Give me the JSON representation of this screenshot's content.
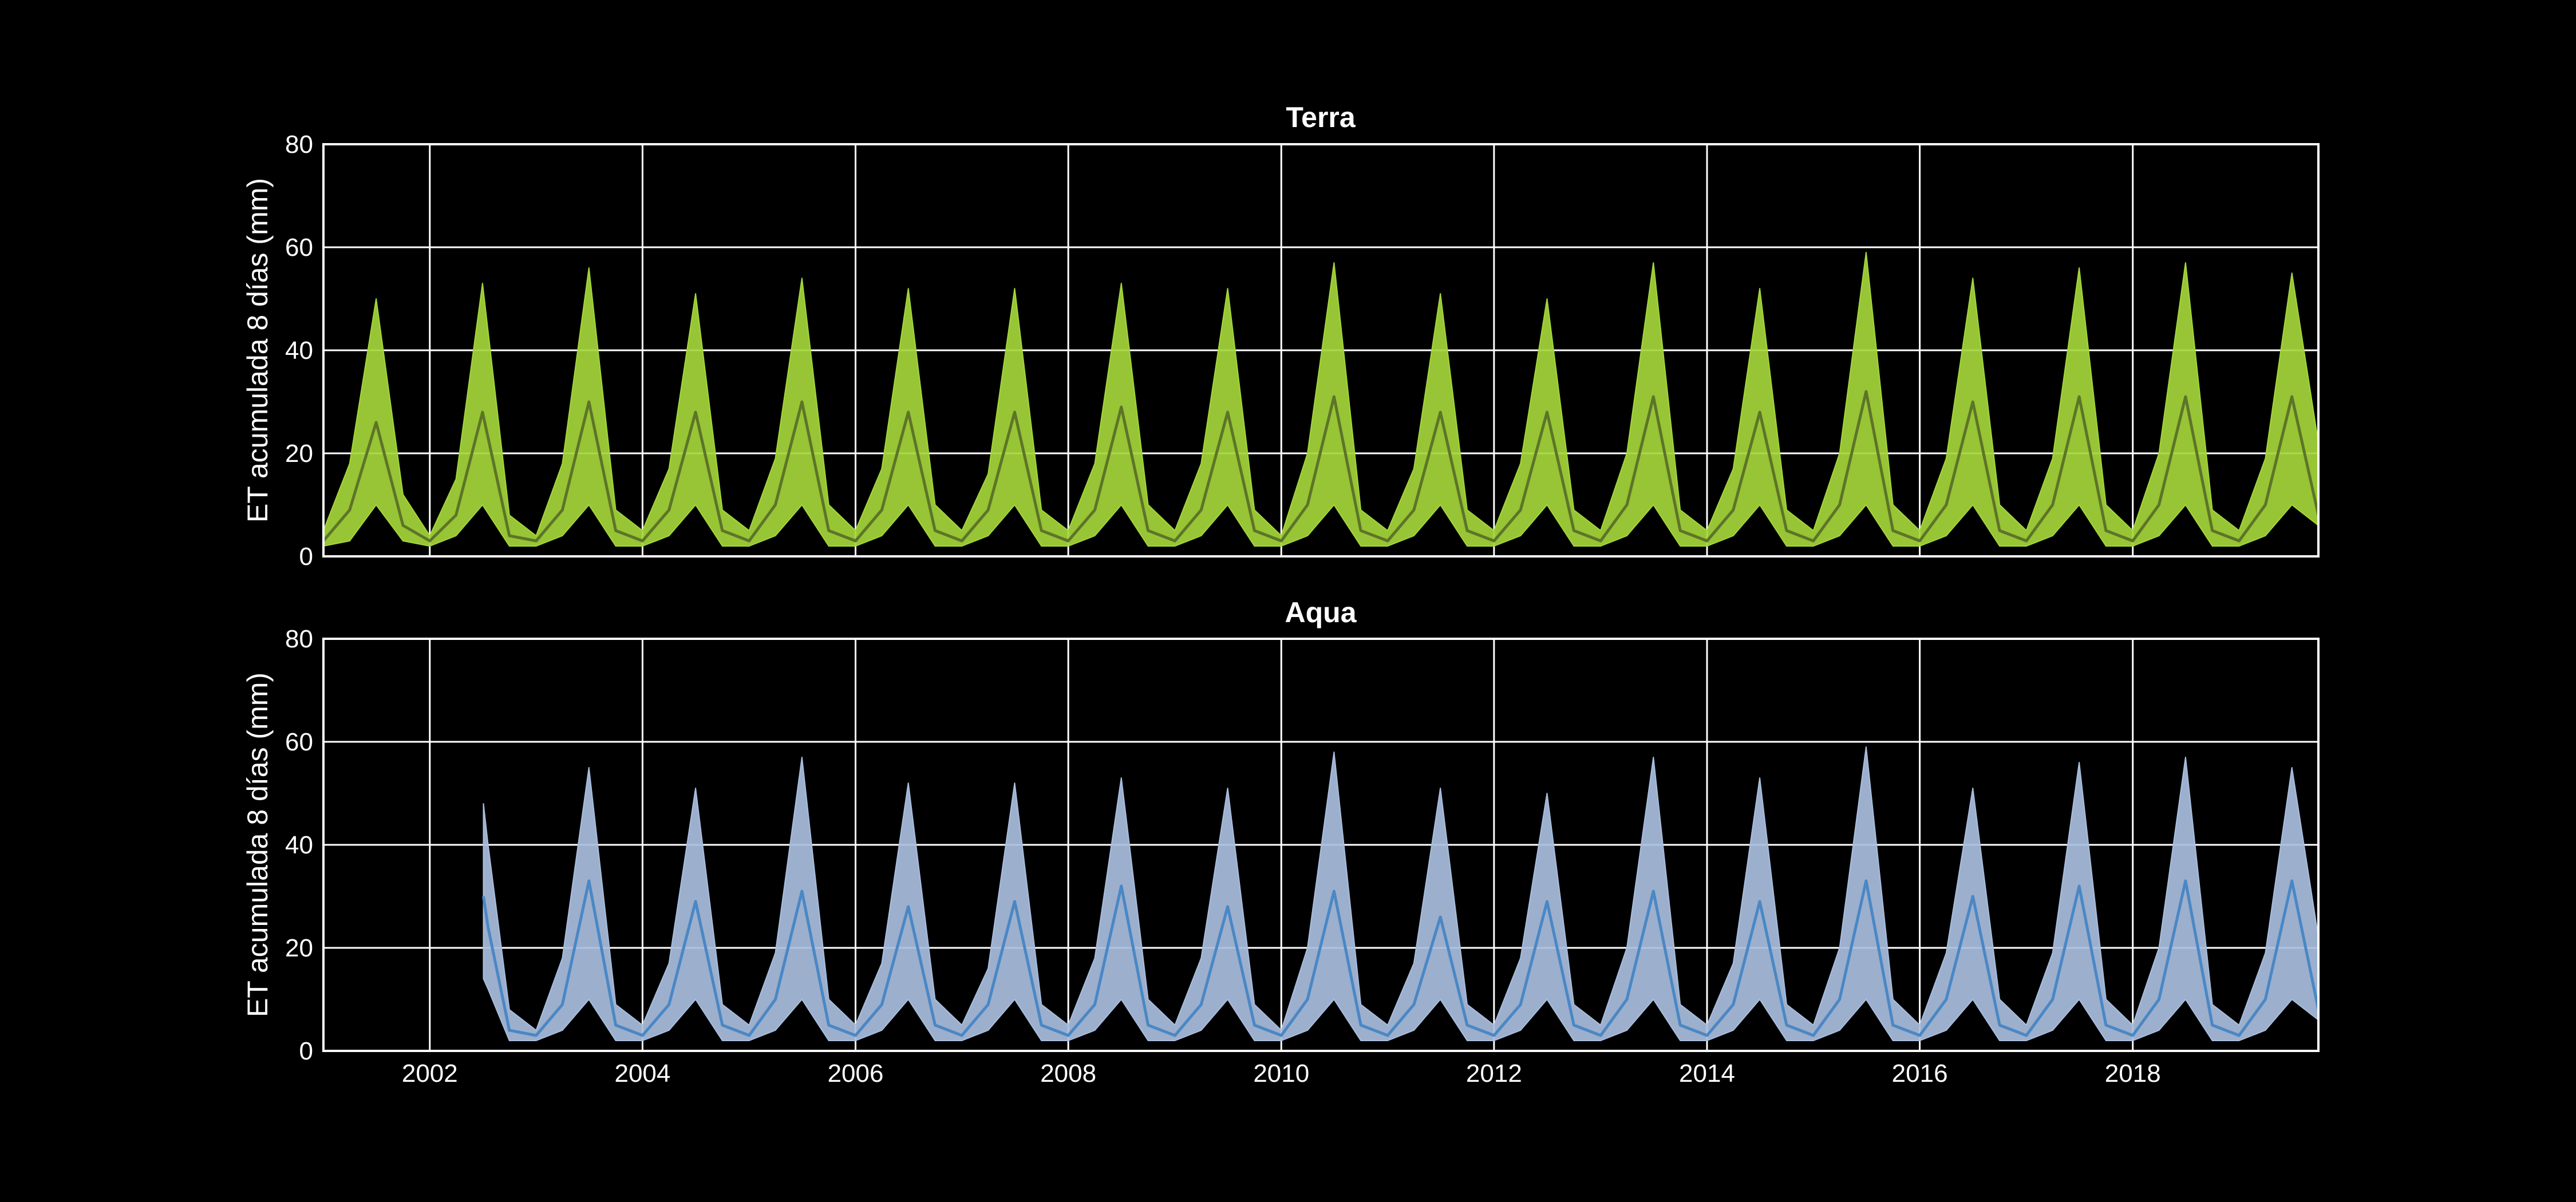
{
  "chart_data": [
    {
      "type": "area",
      "title": "Terra",
      "ylabel": "ET acumulada 8 días (mm)",
      "xlabel": "",
      "xlim": [
        "2001-01-01",
        "2019-09-30"
      ],
      "ylim": [
        0,
        80
      ],
      "yticks": [
        0,
        20,
        40,
        60,
        80
      ],
      "xticks": [
        "2002",
        "2004",
        "2006",
        "2008",
        "2010",
        "2012",
        "2014",
        "2016",
        "2018"
      ],
      "grid": true,
      "series": [
        {
          "kind": "envelope",
          "color": "#a4d63a",
          "x": [
            "2001-01-01",
            "2001-04-01",
            "2001-07-01",
            "2001-10-01",
            "2002-01-01",
            "2002-04-01",
            "2002-07-01",
            "2002-10-01",
            "2003-01-01",
            "2003-04-01",
            "2003-07-01",
            "2003-10-01",
            "2004-01-01",
            "2004-04-01",
            "2004-07-01",
            "2004-10-01",
            "2005-01-01",
            "2005-04-01",
            "2005-07-01",
            "2005-10-01",
            "2006-01-01",
            "2006-04-01",
            "2006-07-01",
            "2006-10-01",
            "2007-01-01",
            "2007-04-01",
            "2007-07-01",
            "2007-10-01",
            "2008-01-01",
            "2008-04-01",
            "2008-07-01",
            "2008-10-01",
            "2009-01-01",
            "2009-04-01",
            "2009-07-01",
            "2009-10-01",
            "2010-01-01",
            "2010-04-01",
            "2010-07-01",
            "2010-10-01",
            "2011-01-01",
            "2011-04-01",
            "2011-07-01",
            "2011-10-01",
            "2012-01-01",
            "2012-04-01",
            "2012-07-01",
            "2012-10-01",
            "2013-01-01",
            "2013-04-01",
            "2013-07-01",
            "2013-10-01",
            "2014-01-01",
            "2014-04-01",
            "2014-07-01",
            "2014-10-01",
            "2015-01-01",
            "2015-04-01",
            "2015-07-01",
            "2015-10-01",
            "2016-01-01",
            "2016-04-01",
            "2016-07-01",
            "2016-10-01",
            "2017-01-01",
            "2017-04-01",
            "2017-07-01",
            "2017-10-01",
            "2018-01-01",
            "2018-04-01",
            "2018-07-01",
            "2018-10-01",
            "2019-01-01",
            "2019-04-01",
            "2019-07-01",
            "2019-09-30"
          ],
          "low": [
            2,
            3,
            10,
            3,
            2,
            4,
            10,
            2,
            2,
            4,
            10,
            2,
            2,
            4,
            10,
            2,
            2,
            4,
            10,
            2,
            2,
            4,
            10,
            2,
            2,
            4,
            10,
            2,
            2,
            4,
            10,
            2,
            2,
            4,
            10,
            2,
            2,
            4,
            10,
            2,
            2,
            4,
            10,
            2,
            2,
            4,
            10,
            2,
            2,
            4,
            10,
            2,
            2,
            4,
            10,
            2,
            2,
            4,
            10,
            2,
            2,
            4,
            10,
            2,
            2,
            4,
            10,
            2,
            2,
            4,
            10,
            2,
            2,
            4,
            10,
            6
          ],
          "high": [
            5,
            18,
            50,
            12,
            4,
            15,
            53,
            8,
            4,
            18,
            56,
            9,
            5,
            17,
            51,
            9,
            5,
            19,
            54,
            10,
            5,
            17,
            52,
            10,
            5,
            16,
            52,
            9,
            5,
            18,
            53,
            10,
            5,
            18,
            52,
            9,
            4,
            20,
            57,
            9,
            5,
            17,
            51,
            9,
            5,
            18,
            50,
            9,
            5,
            20,
            57,
            9,
            5,
            17,
            52,
            9,
            5,
            20,
            59,
            10,
            5,
            19,
            54,
            10,
            5,
            19,
            56,
            10,
            5,
            20,
            57,
            9,
            5,
            19,
            55,
            22
          ]
        },
        {
          "kind": "line",
          "color": "#5d7428",
          "x": [
            "2001-01-01",
            "2001-04-01",
            "2001-07-01",
            "2001-10-01",
            "2002-01-01",
            "2002-04-01",
            "2002-07-01",
            "2002-10-01",
            "2003-01-01",
            "2003-04-01",
            "2003-07-01",
            "2003-10-01",
            "2004-01-01",
            "2004-04-01",
            "2004-07-01",
            "2004-10-01",
            "2005-01-01",
            "2005-04-01",
            "2005-07-01",
            "2005-10-01",
            "2006-01-01",
            "2006-04-01",
            "2006-07-01",
            "2006-10-01",
            "2007-01-01",
            "2007-04-01",
            "2007-07-01",
            "2007-10-01",
            "2008-01-01",
            "2008-04-01",
            "2008-07-01",
            "2008-10-01",
            "2009-01-01",
            "2009-04-01",
            "2009-07-01",
            "2009-10-01",
            "2010-01-01",
            "2010-04-01",
            "2010-07-01",
            "2010-10-01",
            "2011-01-01",
            "2011-04-01",
            "2011-07-01",
            "2011-10-01",
            "2012-01-01",
            "2012-04-01",
            "2012-07-01",
            "2012-10-01",
            "2013-01-01",
            "2013-04-01",
            "2013-07-01",
            "2013-10-01",
            "2014-01-01",
            "2014-04-01",
            "2014-07-01",
            "2014-10-01",
            "2015-01-01",
            "2015-04-01",
            "2015-07-01",
            "2015-10-01",
            "2016-01-01",
            "2016-04-01",
            "2016-07-01",
            "2016-10-01",
            "2017-01-01",
            "2017-04-01",
            "2017-07-01",
            "2017-10-01",
            "2018-01-01",
            "2018-04-01",
            "2018-07-01",
            "2018-10-01",
            "2019-01-01",
            "2019-04-01",
            "2019-07-01",
            "2019-09-30"
          ],
          "values": [
            3,
            9,
            26,
            6,
            3,
            8,
            28,
            4,
            3,
            9,
            30,
            5,
            3,
            9,
            28,
            5,
            3,
            10,
            30,
            5,
            3,
            9,
            28,
            5,
            3,
            9,
            28,
            5,
            3,
            9,
            29,
            5,
            3,
            9,
            28,
            5,
            3,
            10,
            31,
            5,
            3,
            9,
            28,
            5,
            3,
            9,
            28,
            5,
            3,
            10,
            31,
            5,
            3,
            9,
            28,
            5,
            3,
            10,
            32,
            5,
            3,
            10,
            30,
            5,
            3,
            10,
            31,
            5,
            3,
            10,
            31,
            5,
            3,
            10,
            31,
            8
          ]
        }
      ]
    },
    {
      "type": "area",
      "title": "Aqua",
      "ylabel": "ET acumulada 8 días (mm)",
      "xlabel": "",
      "xlim": [
        "2001-01-01",
        "2019-09-30"
      ],
      "ylim": [
        0,
        80
      ],
      "yticks": [
        0,
        20,
        40,
        60,
        80
      ],
      "xticks": [
        "2002",
        "2004",
        "2006",
        "2008",
        "2010",
        "2012",
        "2014",
        "2016",
        "2018"
      ],
      "grid": true,
      "series": [
        {
          "kind": "envelope",
          "color": "#a9bede",
          "x": [
            "2002-07-04",
            "2002-07-20",
            "2002-10-01",
            "2003-01-01",
            "2003-04-01",
            "2003-07-01",
            "2003-10-01",
            "2004-01-01",
            "2004-04-01",
            "2004-07-01",
            "2004-10-01",
            "2005-01-01",
            "2005-04-01",
            "2005-07-01",
            "2005-10-01",
            "2006-01-01",
            "2006-04-01",
            "2006-07-01",
            "2006-10-01",
            "2007-01-01",
            "2007-04-01",
            "2007-07-01",
            "2007-10-01",
            "2008-01-01",
            "2008-04-01",
            "2008-07-01",
            "2008-10-01",
            "2009-01-01",
            "2009-04-01",
            "2009-07-01",
            "2009-10-01",
            "2010-01-01",
            "2010-04-01",
            "2010-07-01",
            "2010-10-01",
            "2011-01-01",
            "2011-04-01",
            "2011-07-01",
            "2011-10-01",
            "2012-01-01",
            "2012-04-01",
            "2012-07-01",
            "2012-10-01",
            "2013-01-01",
            "2013-04-01",
            "2013-07-01",
            "2013-10-01",
            "2014-01-01",
            "2014-04-01",
            "2014-07-01",
            "2014-10-01",
            "2015-01-01",
            "2015-04-01",
            "2015-07-01",
            "2015-10-01",
            "2016-01-01",
            "2016-04-01",
            "2016-07-01",
            "2016-10-01",
            "2017-01-01",
            "2017-04-01",
            "2017-07-01",
            "2017-10-01",
            "2018-01-01",
            "2018-04-01",
            "2018-07-01",
            "2018-10-01",
            "2019-01-01",
            "2019-04-01",
            "2019-07-01",
            "2019-09-30"
          ],
          "low": [
            14,
            12,
            2,
            2,
            4,
            10,
            2,
            2,
            4,
            10,
            2,
            2,
            4,
            10,
            2,
            2,
            4,
            10,
            2,
            2,
            4,
            10,
            2,
            2,
            4,
            10,
            2,
            2,
            4,
            10,
            2,
            2,
            4,
            10,
            2,
            2,
            4,
            10,
            2,
            2,
            4,
            10,
            2,
            2,
            4,
            10,
            2,
            2,
            4,
            10,
            2,
            2,
            4,
            10,
            2,
            2,
            4,
            10,
            2,
            2,
            4,
            10,
            2,
            2,
            4,
            10,
            2,
            2,
            4,
            10,
            6
          ],
          "high": [
            48,
            40,
            8,
            4,
            18,
            55,
            9,
            5,
            17,
            51,
            9,
            5,
            19,
            57,
            10,
            5,
            17,
            52,
            10,
            5,
            16,
            52,
            9,
            5,
            18,
            53,
            10,
            5,
            18,
            51,
            9,
            4,
            20,
            58,
            9,
            5,
            17,
            51,
            9,
            5,
            18,
            50,
            9,
            5,
            20,
            57,
            9,
            5,
            17,
            53,
            9,
            5,
            20,
            59,
            10,
            5,
            19,
            51,
            10,
            5,
            19,
            56,
            10,
            5,
            20,
            57,
            9,
            5,
            19,
            55,
            22
          ]
        },
        {
          "kind": "line",
          "color": "#4a87c4",
          "x": [
            "2002-07-04",
            "2002-07-20",
            "2002-10-01",
            "2003-01-01",
            "2003-04-01",
            "2003-07-01",
            "2003-10-01",
            "2004-01-01",
            "2004-04-01",
            "2004-07-01",
            "2004-10-01",
            "2005-01-01",
            "2005-04-01",
            "2005-07-01",
            "2005-10-01",
            "2006-01-01",
            "2006-04-01",
            "2006-07-01",
            "2006-10-01",
            "2007-01-01",
            "2007-04-01",
            "2007-07-01",
            "2007-10-01",
            "2008-01-01",
            "2008-04-01",
            "2008-07-01",
            "2008-10-01",
            "2009-01-01",
            "2009-04-01",
            "2009-07-01",
            "2009-10-01",
            "2010-01-01",
            "2010-04-01",
            "2010-07-01",
            "2010-10-01",
            "2011-01-01",
            "2011-04-01",
            "2011-07-01",
            "2011-10-01",
            "2012-01-01",
            "2012-04-01",
            "2012-07-01",
            "2012-10-01",
            "2013-01-01",
            "2013-04-01",
            "2013-07-01",
            "2013-10-01",
            "2014-01-01",
            "2014-04-01",
            "2014-07-01",
            "2014-10-01",
            "2015-01-01",
            "2015-04-01",
            "2015-07-01",
            "2015-10-01",
            "2016-01-01",
            "2016-04-01",
            "2016-07-01",
            "2016-10-01",
            "2017-01-01",
            "2017-04-01",
            "2017-07-01",
            "2017-10-01",
            "2018-01-01",
            "2018-04-01",
            "2018-07-01",
            "2018-10-01",
            "2019-01-01",
            "2019-04-01",
            "2019-07-01",
            "2019-09-30"
          ],
          "values": [
            30,
            24,
            4,
            3,
            9,
            33,
            5,
            3,
            9,
            29,
            5,
            3,
            10,
            31,
            5,
            3,
            9,
            28,
            5,
            3,
            9,
            29,
            5,
            3,
            9,
            32,
            5,
            3,
            9,
            28,
            5,
            3,
            10,
            31,
            5,
            3,
            9,
            26,
            5,
            3,
            9,
            29,
            5,
            3,
            10,
            31,
            5,
            3,
            9,
            29,
            5,
            3,
            10,
            33,
            5,
            3,
            10,
            30,
            5,
            3,
            10,
            32,
            5,
            3,
            10,
            33,
            5,
            3,
            10,
            33,
            8
          ]
        }
      ]
    }
  ]
}
